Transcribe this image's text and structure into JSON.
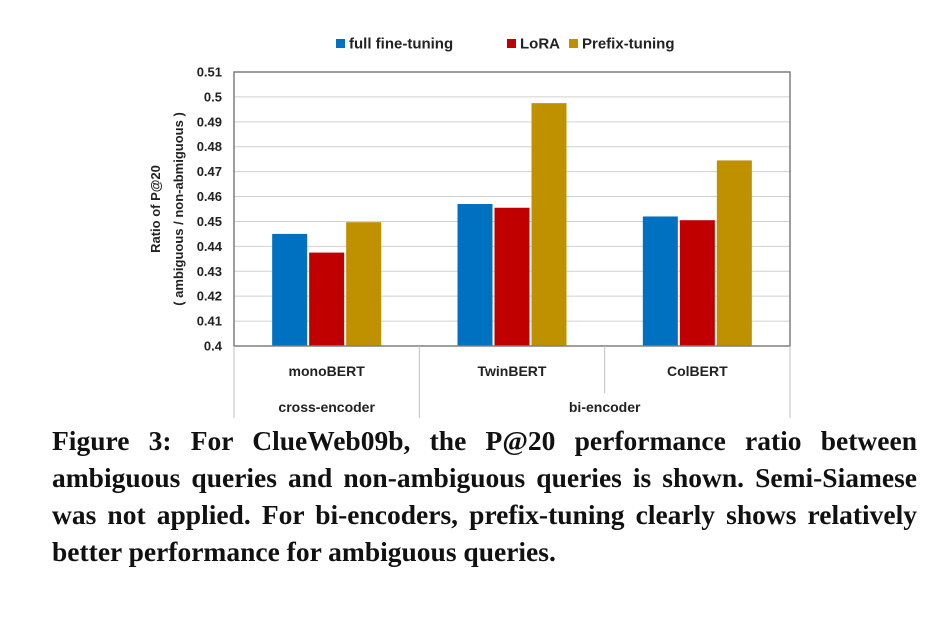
{
  "chart_data": {
    "type": "bar",
    "ylabel": "Ratio of P@20",
    "ylabel_line2": "( ambiguous  / non-abmiguous )",
    "ylim": [
      0.4,
      0.51
    ],
    "yticks": [
      "0.4",
      "0.41",
      "0.42",
      "0.43",
      "0.44",
      "0.45",
      "0.46",
      "0.47",
      "0.48",
      "0.49",
      "0.5",
      "0.51"
    ],
    "grid": true,
    "legend_position": "top",
    "categories": [
      "monoBERT",
      "TwinBERT",
      "ColBERT"
    ],
    "groups": [
      {
        "label": "cross-encoder",
        "categories": [
          "monoBERT"
        ]
      },
      {
        "label": "bi-encoder",
        "categories": [
          "TwinBERT",
          "ColBERT"
        ]
      }
    ],
    "series": [
      {
        "name": "full fine-tuning",
        "color": "#0070C0",
        "values": [
          0.445,
          0.457,
          0.452
        ]
      },
      {
        "name": "LoRA",
        "color": "#C00000",
        "values": [
          0.4375,
          0.4555,
          0.4505
        ]
      },
      {
        "name": "Prefix-tuning",
        "color": "#BF9000",
        "values": [
          0.4497,
          0.4975,
          0.4745
        ]
      }
    ]
  },
  "caption": "Figure 3: For ClueWeb09b, the P@20 performance ratio between ambiguous queries and non-ambiguous queries is shown. Semi-Siamese was not applied. For bi-encoders, prefix-tuning clearly shows relatively better performance for ambiguous queries."
}
